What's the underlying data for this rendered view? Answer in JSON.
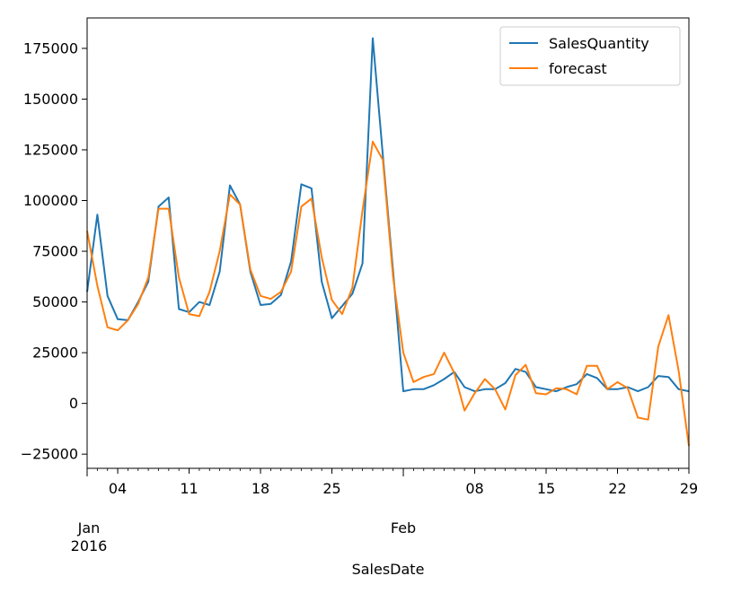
{
  "chart_data": {
    "type": "line",
    "xlabel": "SalesDate",
    "ylabel": "",
    "title": "",
    "ylim": [
      -32000,
      190000
    ],
    "xlim": [
      "2016-01-01",
      "2016-02-29"
    ],
    "grid": false,
    "legend": "top-right",
    "y_ticks": [
      {
        "value": -25000,
        "label": "−25000"
      },
      {
        "value": 0,
        "label": "0"
      },
      {
        "value": 25000,
        "label": "25000"
      },
      {
        "value": 50000,
        "label": "50000"
      },
      {
        "value": 75000,
        "label": "75000"
      },
      {
        "value": 100000,
        "label": "100000"
      },
      {
        "value": 125000,
        "label": "125000"
      },
      {
        "value": 150000,
        "label": "150000"
      },
      {
        "value": 175000,
        "label": "175000"
      }
    ],
    "x_ticks": [
      {
        "date": "2016-01-04",
        "label": "04"
      },
      {
        "date": "2016-01-11",
        "label": "11"
      },
      {
        "date": "2016-01-18",
        "label": "18"
      },
      {
        "date": "2016-01-25",
        "label": "25"
      },
      {
        "date": "2016-02-08",
        "label": "08"
      },
      {
        "date": "2016-02-15",
        "label": "15"
      },
      {
        "date": "2016-02-22",
        "label": "22"
      },
      {
        "date": "2016-02-29",
        "label": "29"
      }
    ],
    "x_major_labels": [
      {
        "date": "2016-01-01",
        "lines": [
          "Jan",
          "2016"
        ]
      },
      {
        "date": "2016-02-01",
        "lines": [
          "Feb"
        ]
      }
    ],
    "x": [
      "2016-01-01",
      "2016-01-02",
      "2016-01-03",
      "2016-01-04",
      "2016-01-05",
      "2016-01-06",
      "2016-01-07",
      "2016-01-08",
      "2016-01-09",
      "2016-01-10",
      "2016-01-11",
      "2016-01-12",
      "2016-01-13",
      "2016-01-14",
      "2016-01-15",
      "2016-01-16",
      "2016-01-17",
      "2016-01-18",
      "2016-01-19",
      "2016-01-20",
      "2016-01-21",
      "2016-01-22",
      "2016-01-23",
      "2016-01-24",
      "2016-01-25",
      "2016-01-26",
      "2016-01-27",
      "2016-01-28",
      "2016-01-29",
      "2016-01-30",
      "2016-01-31",
      "2016-02-01",
      "2016-02-02",
      "2016-02-03",
      "2016-02-04",
      "2016-02-05",
      "2016-02-06",
      "2016-02-07",
      "2016-02-08",
      "2016-02-09",
      "2016-02-10",
      "2016-02-11",
      "2016-02-12",
      "2016-02-13",
      "2016-02-14",
      "2016-02-15",
      "2016-02-16",
      "2016-02-17",
      "2016-02-18",
      "2016-02-19",
      "2016-02-20",
      "2016-02-21",
      "2016-02-22",
      "2016-02-23",
      "2016-02-24",
      "2016-02-25",
      "2016-02-26",
      "2016-02-27",
      "2016-02-28",
      "2016-02-29"
    ],
    "series": [
      {
        "name": "SalesQuantity",
        "color": "#1f77b4",
        "values": [
          55000,
          93000,
          53000,
          41500,
          41000,
          50000,
          60000,
          97000,
          101500,
          46500,
          45000,
          50000,
          48500,
          65000,
          107500,
          98000,
          65000,
          48500,
          49000,
          53500,
          70000,
          108000,
          106000,
          60000,
          42000,
          48000,
          54000,
          69000,
          180000,
          122000,
          65000,
          6000,
          7000,
          7000,
          9000,
          12000,
          15500,
          8000,
          6000,
          7000,
          7000,
          10000,
          17000,
          15500,
          8000,
          7000,
          6000,
          8000,
          9500,
          14500,
          12500,
          7000,
          7000,
          8000,
          6000,
          8000,
          13500,
          13000,
          7000,
          6000
        ]
      },
      {
        "name": "forecast",
        "color": "#ff7f0e",
        "values": [
          85000,
          58000,
          37500,
          36000,
          41000,
          49000,
          62000,
          96000,
          96000,
          62000,
          44000,
          43000,
          55000,
          75000,
          103000,
          98000,
          66000,
          53000,
          51500,
          55000,
          65000,
          97000,
          101000,
          72000,
          51000,
          44000,
          57000,
          95000,
          129000,
          120000,
          62000,
          25000,
          10500,
          13000,
          14500,
          25000,
          15000,
          -3500,
          5000,
          12000,
          7000,
          -3000,
          14000,
          19000,
          5000,
          4500,
          7500,
          7000,
          4500,
          18500,
          18500,
          7000,
          10500,
          7500,
          -7000,
          -8000,
          28000,
          43500,
          16000,
          -21000
        ]
      }
    ]
  }
}
